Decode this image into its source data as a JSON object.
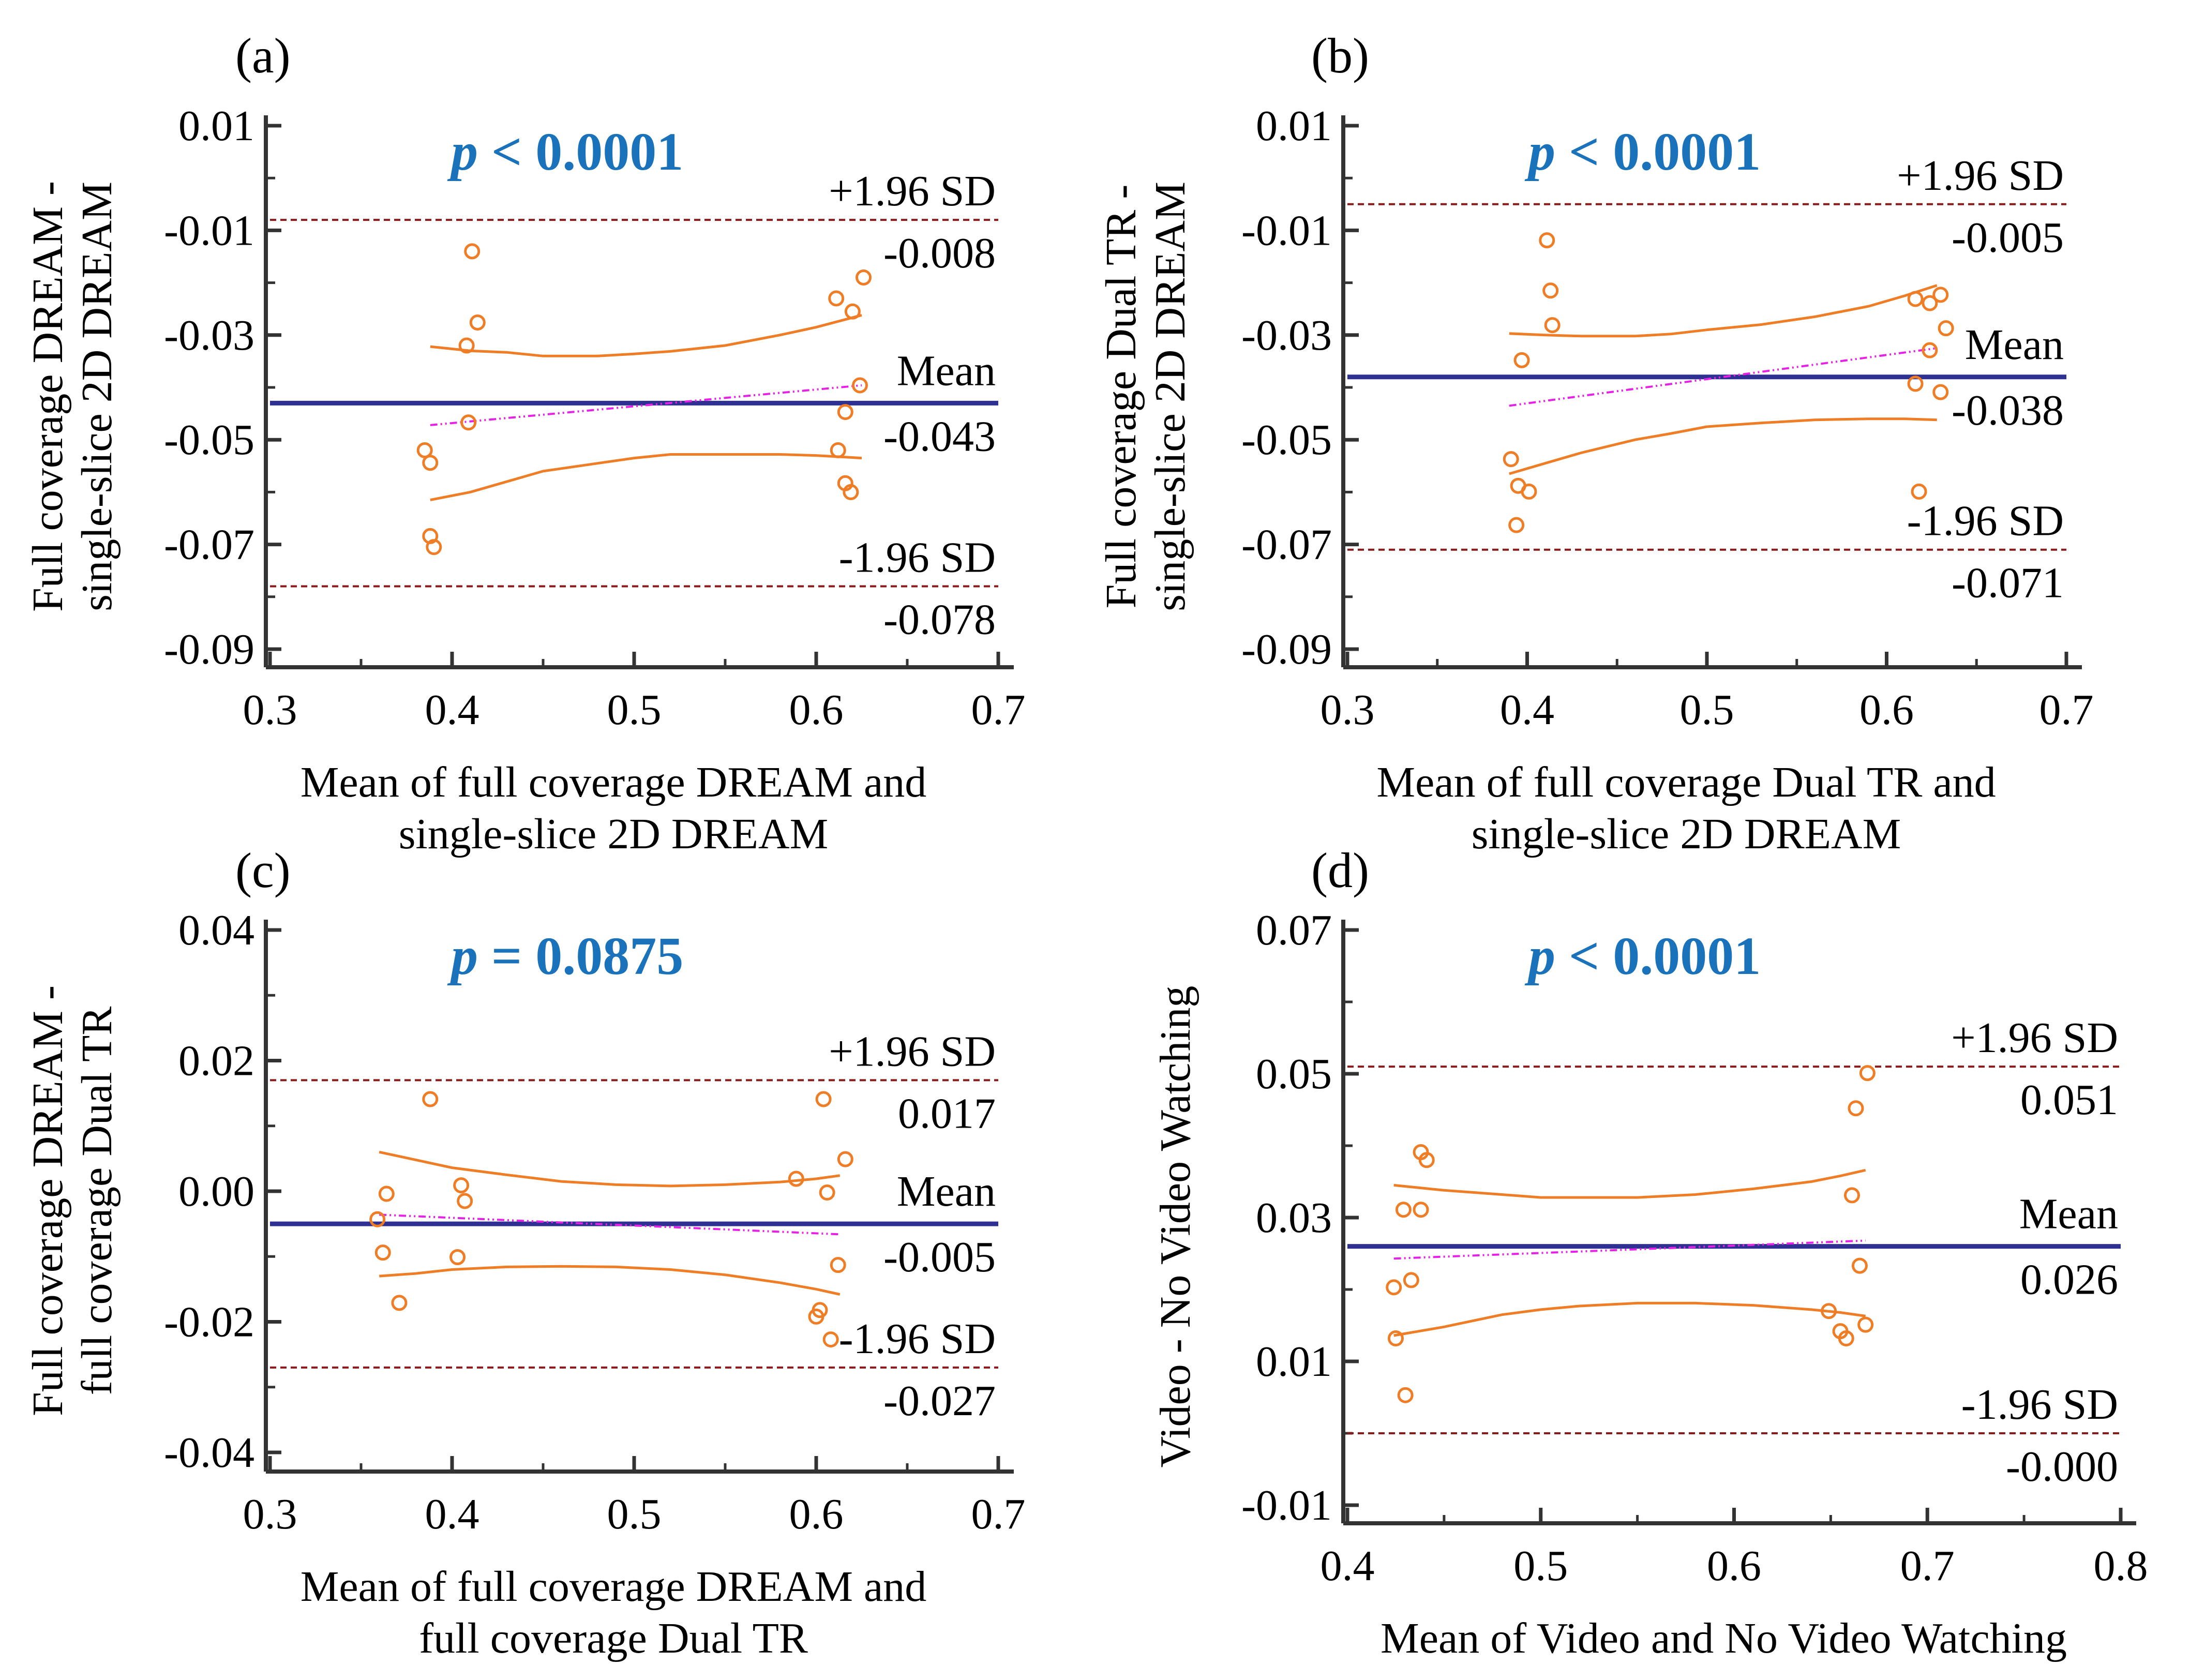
{
  "colors": {
    "points": "#ee7d25",
    "ci_curves": "#ee7d25",
    "mean_line": "#2e3192",
    "regression_line": "#e620e6",
    "loa_lines": "#8b1a1a",
    "pvalue": "#1a72bb",
    "axis": "#333333"
  },
  "chart_data": [
    {
      "type": "scatter",
      "panel_label": "(a)",
      "title": "",
      "pvalue_symbol": "p",
      "pvalue_text": "< 0.0001",
      "xlabel": [
        "Mean of full coverage DREAM and",
        "single-slice 2D DREAM"
      ],
      "ylabel": [
        "Full coverage DREAM -",
        "single-slice 2D DREAM"
      ],
      "xlim": [
        0.3,
        0.7
      ],
      "ylim": [
        -0.09,
        0.01
      ],
      "xticks": [
        0.3,
        0.4,
        0.5,
        0.6,
        0.7
      ],
      "xtick_labels": [
        "0.3",
        "0.4",
        "0.5",
        "0.6",
        "0.7"
      ],
      "yticks": [
        0.01,
        -0.01,
        -0.03,
        -0.05,
        -0.07,
        -0.09
      ],
      "ytick_labels": [
        "0.01",
        "-0.01",
        "-0.03",
        "-0.05",
        "-0.07",
        "-0.09"
      ],
      "mean": -0.043,
      "upper_loa": -0.008,
      "lower_loa": -0.078,
      "annotations": {
        "upper_label": "+1.96 SD",
        "upper_value": "-0.008",
        "mean_label": "Mean",
        "mean_value": "-0.043",
        "lower_label": "-1.96 SD",
        "lower_value": "-0.078"
      },
      "regression": {
        "x": [
          0.388,
          0.625
        ],
        "y": [
          -0.0472,
          -0.0396
        ]
      },
      "ci_upper": {
        "x": [
          0.388,
          0.41,
          0.43,
          0.45,
          0.48,
          0.5,
          0.52,
          0.55,
          0.58,
          0.6,
          0.625
        ],
        "y": [
          -0.0322,
          -0.033,
          -0.0333,
          -0.034,
          -0.034,
          -0.0336,
          -0.0331,
          -0.032,
          -0.03,
          -0.0285,
          -0.0262
        ]
      },
      "ci_lower": {
        "x": [
          0.388,
          0.41,
          0.43,
          0.45,
          0.48,
          0.5,
          0.52,
          0.55,
          0.58,
          0.6,
          0.625
        ],
        "y": [
          -0.0615,
          -0.06,
          -0.058,
          -0.056,
          -0.0545,
          -0.0535,
          -0.0528,
          -0.0528,
          -0.0528,
          -0.053,
          -0.0535
        ]
      },
      "points": {
        "x": [
          0.411,
          0.414,
          0.408,
          0.409,
          0.385,
          0.388,
          0.388,
          0.39,
          0.626,
          0.611,
          0.62,
          0.624,
          0.616,
          0.612,
          0.616,
          0.619
        ],
        "y": [
          -0.014,
          -0.0276,
          -0.032,
          -0.0467,
          -0.052,
          -0.0544,
          -0.0684,
          -0.0705,
          -0.019,
          -0.023,
          -0.0255,
          -0.0396,
          -0.0447,
          -0.052,
          -0.0583,
          -0.06
        ]
      }
    },
    {
      "type": "scatter",
      "panel_label": "(b)",
      "title": "",
      "pvalue_symbol": "p",
      "pvalue_text": "< 0.0001",
      "xlabel": [
        "Mean of full coverage Dual TR and",
        "single-slice 2D DREAM"
      ],
      "ylabel": [
        "Full coverage Dual TR -",
        "single-slice 2D DREAM"
      ],
      "xlim": [
        0.3,
        0.7
      ],
      "ylim": [
        -0.09,
        0.01
      ],
      "xticks": [
        0.3,
        0.4,
        0.5,
        0.6,
        0.7
      ],
      "xtick_labels": [
        "0.3",
        "0.4",
        "0.5",
        "0.6",
        "0.7"
      ],
      "yticks": [
        0.01,
        -0.01,
        -0.03,
        -0.05,
        -0.07,
        -0.09
      ],
      "ytick_labels": [
        "0.01",
        "-0.01",
        "-0.03",
        "-0.05",
        "-0.07",
        "-0.09"
      ],
      "mean": -0.038,
      "upper_loa": -0.005,
      "lower_loa": -0.071,
      "annotations": {
        "upper_label": "+1.96 SD",
        "upper_value": "-0.005",
        "mean_label": "Mean",
        "mean_value": "-0.038",
        "lower_label": "-1.96 SD",
        "lower_value": "-0.071"
      },
      "regression": {
        "x": [
          0.39,
          0.628
        ],
        "y": [
          -0.0435,
          -0.0325
        ]
      },
      "ci_upper": {
        "x": [
          0.39,
          0.41,
          0.43,
          0.46,
          0.48,
          0.5,
          0.53,
          0.56,
          0.59,
          0.61,
          0.628
        ],
        "y": [
          -0.0297,
          -0.03,
          -0.0302,
          -0.0302,
          -0.0298,
          -0.029,
          -0.028,
          -0.0265,
          -0.0245,
          -0.0225,
          -0.0205
        ]
      },
      "ci_lower": {
        "x": [
          0.39,
          0.41,
          0.43,
          0.46,
          0.48,
          0.5,
          0.53,
          0.56,
          0.59,
          0.61,
          0.628
        ],
        "y": [
          -0.0565,
          -0.0545,
          -0.0525,
          -0.05,
          -0.0488,
          -0.0475,
          -0.0468,
          -0.0462,
          -0.046,
          -0.046,
          -0.0462
        ]
      },
      "points": {
        "x": [
          0.411,
          0.413,
          0.414,
          0.397,
          0.391,
          0.395,
          0.401,
          0.394,
          0.616,
          0.624,
          0.63,
          0.633,
          0.624,
          0.616,
          0.63,
          0.618
        ],
        "y": [
          -0.0119,
          -0.0215,
          -0.0281,
          -0.0348,
          -0.0537,
          -0.0588,
          -0.0599,
          -0.0663,
          -0.0231,
          -0.0239,
          -0.0223,
          -0.0287,
          -0.0329,
          -0.0393,
          -0.0409,
          -0.0599
        ]
      }
    },
    {
      "type": "scatter",
      "panel_label": "(c)",
      "title": "",
      "pvalue_symbol": "p",
      "pvalue_text": "= 0.0875",
      "xlabel": [
        "Mean of full coverage DREAM and",
        "full coverage Dual TR"
      ],
      "ylabel": [
        "Full coverage DREAM -",
        "full coverage Dual TR"
      ],
      "xlim": [
        0.3,
        0.7
      ],
      "ylim": [
        -0.04,
        0.04
      ],
      "xticks": [
        0.3,
        0.4,
        0.5,
        0.6,
        0.7
      ],
      "xtick_labels": [
        "0.3",
        "0.4",
        "0.5",
        "0.6",
        "0.7"
      ],
      "yticks": [
        0.04,
        0.02,
        0.0,
        -0.02,
        -0.04
      ],
      "ytick_labels": [
        "0.04",
        "0.02",
        "0.00",
        "-0.02",
        "-0.04"
      ],
      "mean": -0.005,
      "upper_loa": 0.017,
      "lower_loa": -0.027,
      "annotations": {
        "upper_label": "+1.96 SD",
        "upper_value": "0.017",
        "mean_label": "Mean",
        "mean_value": "-0.005",
        "lower_label": "-1.96 SD",
        "lower_value": "-0.027"
      },
      "regression": {
        "x": [
          0.36,
          0.613
        ],
        "y": [
          -0.0036,
          -0.0066
        ]
      },
      "ci_upper": {
        "x": [
          0.36,
          0.38,
          0.4,
          0.43,
          0.46,
          0.49,
          0.52,
          0.55,
          0.58,
          0.6,
          0.613
        ],
        "y": [
          0.006,
          0.0048,
          0.0036,
          0.0025,
          0.0015,
          0.001,
          0.0008,
          0.001,
          0.0014,
          0.0019,
          0.0024
        ]
      },
      "ci_lower": {
        "x": [
          0.36,
          0.38,
          0.4,
          0.43,
          0.46,
          0.49,
          0.52,
          0.55,
          0.58,
          0.6,
          0.613
        ],
        "y": [
          -0.013,
          -0.0126,
          -0.012,
          -0.0116,
          -0.0115,
          -0.0116,
          -0.012,
          -0.0128,
          -0.014,
          -0.015,
          -0.0158
        ]
      },
      "points": {
        "x": [
          0.388,
          0.359,
          0.364,
          0.405,
          0.407,
          0.362,
          0.403,
          0.371,
          0.604,
          0.616,
          0.589,
          0.606,
          0.612,
          0.6,
          0.602,
          0.608
        ],
        "y": [
          0.0141,
          -0.0043,
          -0.0004,
          0.0009,
          -0.0015,
          -0.0094,
          -0.0101,
          -0.0171,
          0.0141,
          0.0049,
          0.0019,
          -0.0002,
          -0.0113,
          -0.0192,
          -0.0182,
          -0.0227
        ]
      }
    },
    {
      "type": "scatter",
      "panel_label": "(d)",
      "title": "",
      "pvalue_symbol": "p",
      "pvalue_text": "< 0.0001",
      "xlabel": [
        "Mean of Video and No Video Watching"
      ],
      "ylabel": [
        "Video - No Video Watching"
      ],
      "xlim": [
        0.4,
        0.8
      ],
      "ylim": [
        -0.01,
        0.07
      ],
      "xticks": [
        0.4,
        0.5,
        0.6,
        0.7,
        0.8
      ],
      "xtick_labels": [
        "0.4",
        "0.5",
        "0.6",
        "0.7",
        "0.8"
      ],
      "yticks": [
        0.07,
        0.05,
        0.03,
        0.01,
        -0.01
      ],
      "ytick_labels": [
        "0.07",
        "0.05",
        "0.03",
        "0.01",
        "-0.01"
      ],
      "mean": 0.026,
      "upper_loa": 0.051,
      "lower_loa": 0.0,
      "annotations": {
        "upper_label": "+1.96 SD",
        "upper_value": "0.051",
        "mean_label": "Mean",
        "mean_value": "0.026",
        "lower_label": "-1.96 SD",
        "lower_value": "-0.000"
      },
      "regression": {
        "x": [
          0.424,
          0.668
        ],
        "y": [
          0.0243,
          0.0268
        ]
      },
      "ci_upper": {
        "x": [
          0.424,
          0.45,
          0.48,
          0.5,
          0.52,
          0.55,
          0.58,
          0.61,
          0.64,
          0.655,
          0.668
        ],
        "y": [
          0.0345,
          0.0338,
          0.0332,
          0.0328,
          0.0328,
          0.0328,
          0.0332,
          0.034,
          0.035,
          0.0358,
          0.0366
        ]
      },
      "ci_lower": {
        "x": [
          0.424,
          0.45,
          0.48,
          0.5,
          0.52,
          0.55,
          0.58,
          0.61,
          0.64,
          0.655,
          0.668
        ],
        "y": [
          0.0136,
          0.0148,
          0.0165,
          0.0172,
          0.0177,
          0.0181,
          0.0181,
          0.0178,
          0.0172,
          0.0168,
          0.0163
        ]
      },
      "points": {
        "x": [
          0.424,
          0.425,
          0.43,
          0.433,
          0.429,
          0.438,
          0.438,
          0.441,
          0.669,
          0.663,
          0.661,
          0.665,
          0.649,
          0.655,
          0.658,
          0.668
        ],
        "y": [
          0.0203,
          0.0132,
          0.0053,
          0.0213,
          0.0311,
          0.0311,
          0.0391,
          0.038,
          0.0501,
          0.0452,
          0.0331,
          0.0233,
          0.017,
          0.0142,
          0.0132,
          0.0151
        ]
      }
    }
  ]
}
